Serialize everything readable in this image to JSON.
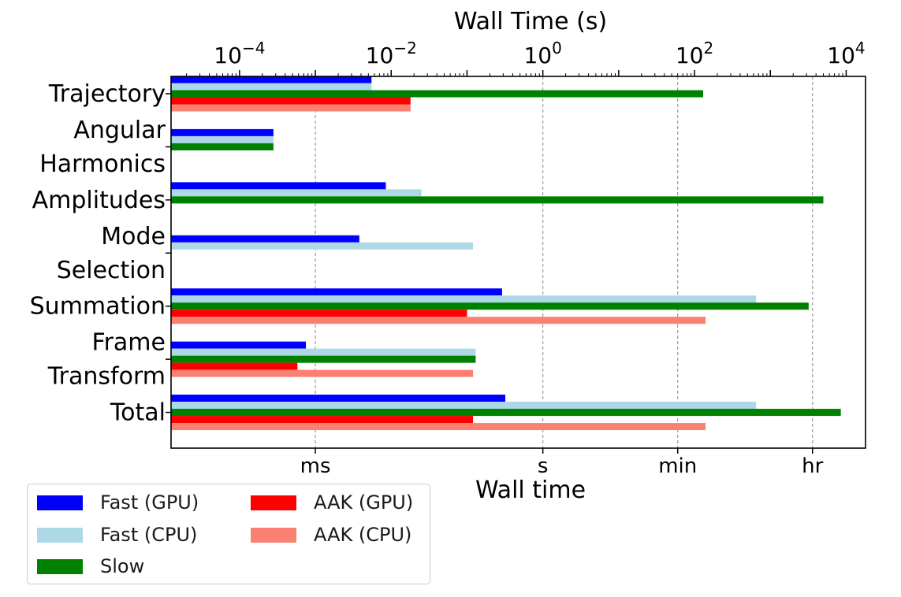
{
  "chart_data": {
    "type": "bar",
    "orientation": "horizontal",
    "xscale": "log",
    "title_top": "Wall Time (s)",
    "xlabel": "Wall time",
    "xlim": [
      1.25e-05,
      18000
    ],
    "top_ticks": [
      {
        "value": 0.0001,
        "base": "10",
        "exp": "−4"
      },
      {
        "value": 0.01,
        "base": "10",
        "exp": "−2"
      },
      {
        "value": 1,
        "base": "10",
        "exp": "0"
      },
      {
        "value": 100,
        "base": "10",
        "exp": "2"
      },
      {
        "value": 10000,
        "base": "10",
        "exp": "4"
      }
    ],
    "bottom_ticks": [
      {
        "value": 0.001,
        "label": "ms"
      },
      {
        "value": 1,
        "label": "s"
      },
      {
        "value": 60,
        "label": "min"
      },
      {
        "value": 3600,
        "label": "hr"
      }
    ],
    "categories": [
      [
        "Trajectory"
      ],
      [
        "Angular",
        "Harmonics"
      ],
      [
        "Amplitudes"
      ],
      [
        "Mode",
        "Selection"
      ],
      [
        "Summation"
      ],
      [
        "Frame",
        "Transform"
      ],
      [
        "Total"
      ]
    ],
    "series": [
      {
        "name": "Fast (GPU)",
        "color": "#0000ff",
        "values": [
          0.0055,
          0.00028,
          0.0085,
          0.0038,
          0.29,
          0.00075,
          0.32
        ]
      },
      {
        "name": "Fast (CPU)",
        "color": "#add8e6",
        "values": [
          0.0055,
          0.00028,
          0.025,
          0.12,
          650,
          0.13,
          650
        ]
      },
      {
        "name": "Slow",
        "color": "#008000",
        "values": [
          130,
          0.00028,
          5000,
          null,
          3200,
          0.13,
          8500
        ]
      },
      {
        "name": "AAK (GPU)",
        "color": "#ff0000",
        "values": [
          0.018,
          null,
          null,
          null,
          0.1,
          0.00058,
          0.12
        ]
      },
      {
        "name": "AAK (CPU)",
        "color": "#fa8072",
        "values": [
          0.018,
          null,
          null,
          null,
          140,
          0.12,
          140
        ]
      }
    ]
  }
}
